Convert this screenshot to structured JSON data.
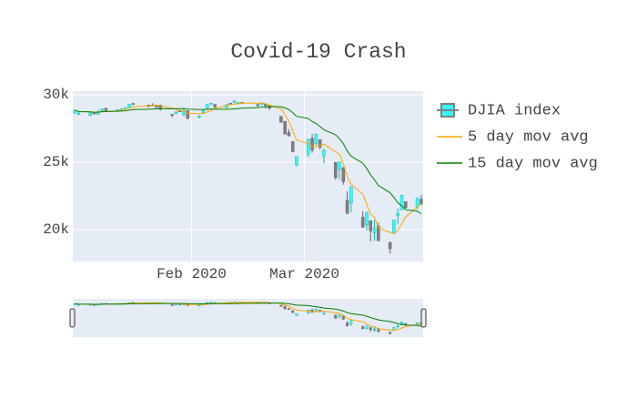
{
  "chart_data": {
    "type": "candlestick",
    "title": "Covid-19 Crash",
    "x": [
      2,
      3,
      6,
      7,
      8,
      9,
      10,
      13,
      14,
      15,
      16,
      17,
      21,
      22,
      23,
      24,
      27,
      28,
      29,
      30,
      31,
      34,
      35,
      36,
      37,
      38,
      41,
      42,
      43,
      44,
      45,
      49,
      50,
      51,
      52,
      55,
      56,
      57,
      58,
      59,
      62,
      63,
      64,
      65,
      66,
      69,
      70,
      71,
      72,
      73,
      76,
      77,
      78,
      79,
      80,
      83,
      84,
      85,
      86,
      87,
      90,
      91
    ],
    "xlim": [
      1.5,
      91.5
    ],
    "xticks": [
      {
        "value": 32,
        "label": "Feb 2020"
      },
      {
        "value": 61,
        "label": "Mar 2020"
      }
    ],
    "ylim": [
      17635,
      30270
    ],
    "yticks": [
      {
        "value": 20000,
        "label": "20k"
      },
      {
        "value": 25000,
        "label": "25k"
      },
      {
        "value": 30000,
        "label": "30k"
      }
    ],
    "grid": true,
    "rangeslider": true,
    "series": [
      {
        "name": "DJIA index",
        "type": "candlestick",
        "increasing_color": "#33ffff",
        "decreasing_color": "#808080",
        "open": [
          28639,
          28553,
          28465,
          28640,
          28556,
          28850,
          28996,
          28819,
          28886,
          28923,
          29070,
          29359,
          29243,
          29239,
          29178,
          29227,
          28542,
          28596,
          28820,
          28515,
          28813,
          28319,
          28697,
          28989,
          29361,
          29286,
          29060,
          29365,
          29406,
          29391,
          29440,
          29282,
          29320,
          29317,
          29167,
          28402,
          28028,
          27198,
          26526,
          24806,
          25591,
          26762,
          26383,
          26671,
          25458,
          24993,
          24453,
          24604,
          22184,
          21973,
          20917,
          20342,
          20656,
          19735,
          20253,
          19028,
          19722,
          21050,
          21468,
          22080,
          21679,
          22245
        ],
        "high": [
          28872,
          28716,
          28708,
          28686,
          28866,
          28961,
          29009,
          28910,
          29010,
          29100,
          29300,
          29374,
          29246,
          29373,
          29186,
          29249,
          28546,
          28758,
          28892,
          28892,
          28830,
          28506,
          28897,
          29290,
          29380,
          29286,
          29278,
          29415,
          29568,
          29441,
          29440,
          29282,
          29409,
          29370,
          29167,
          28402,
          28048,
          27450,
          26526,
          25409,
          26709,
          27084,
          27091,
          26671,
          25995,
          24993,
          25020,
          24604,
          22837,
          23190,
          21389,
          21325,
          20656,
          20711,
          20531,
          19122,
          20739,
          21564,
          22596,
          22080,
          22377,
          22570
        ],
        "low": [
          28627,
          28500,
          28418,
          28555,
          28502,
          28798,
          28789,
          28780,
          28848,
          28898,
          29060,
          29234,
          29046,
          29164,
          28905,
          28812,
          28330,
          28560,
          28729,
          28411,
          28170,
          28235,
          28665,
          28989,
          29261,
          29034,
          29022,
          29258,
          29406,
          29319,
          29314,
          29079,
          29314,
          28960,
          28893,
          27961,
          27081,
          26896,
          25766,
          24681,
          25391,
          25706,
          26264,
          25943,
          24927,
          23706,
          23690,
          23328,
          21154,
          21285,
          20116,
          19939,
          19122,
          19177,
          19174,
          18214,
          19722,
          20376,
          21469,
          21553,
          21523,
          21791
        ],
        "close": [
          28868,
          28634,
          28703,
          28583,
          28745,
          28956,
          28824,
          28907,
          28940,
          29030,
          29298,
          29348,
          29196,
          29186,
          29160,
          28990,
          28536,
          28723,
          28734,
          28860,
          28256,
          28400,
          28807,
          29290,
          29380,
          29103,
          29276,
          29276,
          29551,
          29424,
          29398,
          29232,
          29348,
          29219,
          28992,
          27961,
          27081,
          26957,
          25766,
          25409,
          26703,
          25917,
          27091,
          26121,
          25865,
          23851,
          25018,
          23553,
          21200,
          23186,
          20189,
          21237,
          19899,
          20087,
          19174,
          18592,
          20704,
          21200,
          22552,
          21637,
          22328,
          21917
        ]
      },
      {
        "name": "5 day mov avg",
        "type": "line",
        "color": "#ffa500",
        "values": [
          28868,
          28751,
          28735,
          28697,
          28707,
          28724,
          28762,
          28803,
          28874,
          28931,
          29000,
          29105,
          29162,
          29212,
          29238,
          29176,
          29014,
          28919,
          28829,
          28769,
          28622,
          28595,
          28611,
          28723,
          28827,
          28996,
          29171,
          29265,
          29317,
          29326,
          29385,
          29376,
          29391,
          29324,
          29238,
          28950,
          28520,
          28042,
          27351,
          26635,
          26383,
          26150,
          26177,
          26248,
          26339,
          25769,
          25589,
          24882,
          23897,
          23362,
          22629,
          21873,
          21142,
          20920,
          20117,
          19798,
          19691,
          19951,
          20444,
          20937,
          21684,
          21927
        ]
      },
      {
        "name": "15 day mov avg",
        "type": "line",
        "color": "#008000",
        "values": [
          28868,
          28751,
          28735,
          28697,
          28707,
          28748,
          28759,
          28778,
          28796,
          28819,
          28863,
          28903,
          28926,
          28944,
          28959,
          28967,
          28960,
          28961,
          28972,
          28979,
          28933,
          28904,
          28898,
          28921,
          28944,
          28931,
          28926,
          28932,
          28956,
          28974,
          29001,
          29047,
          29089,
          29121,
          29130,
          29110,
          29023,
          28899,
          28664,
          28400,
          28240,
          28016,
          27870,
          27641,
          27404,
          27034,
          26753,
          26367,
          25832,
          25445,
          24927,
          24538,
          24067,
          23688,
          23273,
          22732,
          22384,
          21992,
          21754,
          21472,
          21370,
          21164
        ]
      }
    ]
  }
}
